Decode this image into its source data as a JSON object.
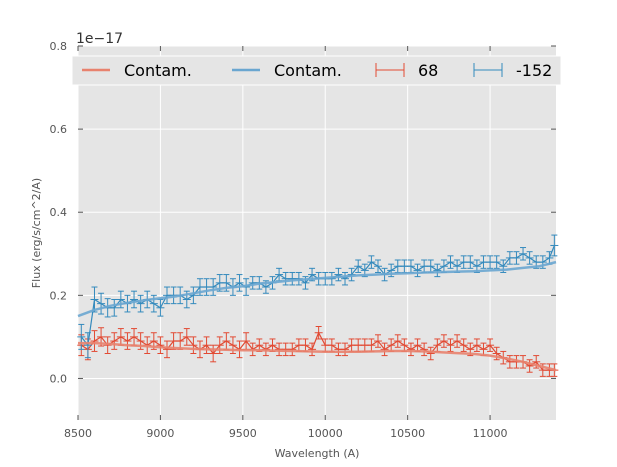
{
  "chart_data": {
    "type": "line",
    "xlabel": "Wavelength (A)",
    "ylabel": "Flux (erg/s/cm^2/A)",
    "y_offset_label": "1e−17",
    "xlim": [
      8500,
      11400
    ],
    "ylim": [
      -0.1,
      0.8
    ],
    "x_ticks": [
      8500,
      9000,
      9500,
      10000,
      10500,
      11000
    ],
    "x_tick_labels": [
      "8500",
      "9000",
      "9500",
      "10000",
      "10500",
      "11000"
    ],
    "y_ticks": [
      0.0,
      0.2,
      0.4,
      0.6,
      0.8
    ],
    "y_tick_labels": [
      "0.0",
      "0.2",
      "0.4",
      "0.6",
      "0.8"
    ],
    "grid": true,
    "legend_position": "top",
    "legend": [
      {
        "label": "Contam.",
        "kind": "line",
        "color": "#e8826e"
      },
      {
        "label": "Contam.",
        "kind": "line",
        "color": "#6aa6d0"
      },
      {
        "label": "68",
        "kind": "errorbar",
        "color": "#e24a33"
      },
      {
        "label": "-152",
        "kind": "errorbar",
        "color": "#348abd"
      }
    ],
    "series": [
      {
        "name": "68",
        "kind": "errorbar",
        "color": "#e24a33",
        "x": [
          8520,
          8560,
          8600,
          8640,
          8680,
          8720,
          8760,
          8800,
          8840,
          8880,
          8920,
          8960,
          9000,
          9040,
          9080,
          9120,
          9160,
          9200,
          9240,
          9280,
          9320,
          9360,
          9400,
          9440,
          9480,
          9520,
          9560,
          9600,
          9640,
          9680,
          9720,
          9760,
          9800,
          9840,
          9880,
          9920,
          9960,
          10000,
          10040,
          10080,
          10120,
          10160,
          10200,
          10240,
          10280,
          10320,
          10360,
          10400,
          10440,
          10480,
          10520,
          10560,
          10600,
          10640,
          10680,
          10720,
          10760,
          10800,
          10840,
          10880,
          10920,
          10960,
          11000,
          11040,
          11080,
          11120,
          11160,
          11200,
          11240,
          11280,
          11320,
          11360,
          11390
        ],
        "y": [
          0.08,
          0.07,
          0.09,
          0.1,
          0.08,
          0.09,
          0.1,
          0.09,
          0.1,
          0.09,
          0.08,
          0.09,
          0.08,
          0.07,
          0.09,
          0.09,
          0.1,
          0.08,
          0.07,
          0.08,
          0.06,
          0.08,
          0.09,
          0.08,
          0.07,
          0.09,
          0.07,
          0.08,
          0.07,
          0.08,
          0.07,
          0.07,
          0.07,
          0.08,
          0.08,
          0.07,
          0.11,
          0.08,
          0.08,
          0.07,
          0.07,
          0.08,
          0.08,
          0.08,
          0.08,
          0.09,
          0.07,
          0.08,
          0.09,
          0.08,
          0.07,
          0.08,
          0.07,
          0.06,
          0.08,
          0.09,
          0.08,
          0.09,
          0.08,
          0.07,
          0.08,
          0.07,
          0.08,
          0.06,
          0.05,
          0.04,
          0.04,
          0.04,
          0.03,
          0.04,
          0.02,
          0.02,
          0.02
        ],
        "err": [
          0.025,
          0.025,
          0.025,
          0.022,
          0.02,
          0.02,
          0.02,
          0.02,
          0.02,
          0.02,
          0.02,
          0.02,
          0.02,
          0.02,
          0.02,
          0.02,
          0.02,
          0.02,
          0.02,
          0.02,
          0.02,
          0.02,
          0.02,
          0.02,
          0.02,
          0.02,
          0.015,
          0.015,
          0.015,
          0.015,
          0.015,
          0.015,
          0.015,
          0.015,
          0.015,
          0.015,
          0.015,
          0.015,
          0.015,
          0.015,
          0.015,
          0.015,
          0.015,
          0.015,
          0.015,
          0.015,
          0.015,
          0.015,
          0.015,
          0.015,
          0.015,
          0.015,
          0.015,
          0.015,
          0.015,
          0.015,
          0.015,
          0.015,
          0.015,
          0.015,
          0.015,
          0.015,
          0.015,
          0.015,
          0.015,
          0.015,
          0.015,
          0.015,
          0.015,
          0.015,
          0.015,
          0.015,
          0.015
        ]
      },
      {
        "name": "-152",
        "kind": "errorbar",
        "color": "#348abd",
        "x": [
          8520,
          8560,
          8600,
          8640,
          8680,
          8720,
          8760,
          8800,
          8840,
          8880,
          8920,
          8960,
          9000,
          9040,
          9080,
          9120,
          9160,
          9200,
          9240,
          9280,
          9320,
          9360,
          9400,
          9440,
          9480,
          9520,
          9560,
          9600,
          9640,
          9680,
          9720,
          9760,
          9800,
          9840,
          9880,
          9920,
          9960,
          10000,
          10040,
          10080,
          10120,
          10160,
          10200,
          10240,
          10280,
          10320,
          10360,
          10400,
          10440,
          10480,
          10520,
          10560,
          10600,
          10640,
          10680,
          10720,
          10760,
          10800,
          10840,
          10880,
          10920,
          10960,
          11000,
          11040,
          11080,
          11120,
          11160,
          11200,
          11240,
          11280,
          11320,
          11360,
          11390
        ],
        "y": [
          0.1,
          0.08,
          0.19,
          0.18,
          0.17,
          0.17,
          0.19,
          0.18,
          0.19,
          0.18,
          0.19,
          0.18,
          0.17,
          0.2,
          0.2,
          0.2,
          0.19,
          0.2,
          0.22,
          0.22,
          0.22,
          0.23,
          0.23,
          0.22,
          0.23,
          0.22,
          0.23,
          0.23,
          0.22,
          0.23,
          0.25,
          0.24,
          0.24,
          0.24,
          0.23,
          0.25,
          0.24,
          0.24,
          0.24,
          0.25,
          0.24,
          0.25,
          0.27,
          0.26,
          0.28,
          0.27,
          0.25,
          0.26,
          0.27,
          0.27,
          0.27,
          0.26,
          0.27,
          0.27,
          0.26,
          0.27,
          0.28,
          0.27,
          0.28,
          0.28,
          0.27,
          0.28,
          0.28,
          0.28,
          0.27,
          0.29,
          0.29,
          0.3,
          0.29,
          0.28,
          0.28,
          0.29,
          0.32
        ],
        "err": [
          0.03,
          0.03,
          0.03,
          0.025,
          0.022,
          0.02,
          0.02,
          0.02,
          0.02,
          0.02,
          0.02,
          0.02,
          0.02,
          0.02,
          0.02,
          0.02,
          0.02,
          0.02,
          0.02,
          0.02,
          0.02,
          0.02,
          0.02,
          0.02,
          0.02,
          0.02,
          0.015,
          0.015,
          0.015,
          0.015,
          0.015,
          0.015,
          0.015,
          0.015,
          0.015,
          0.015,
          0.015,
          0.015,
          0.015,
          0.015,
          0.015,
          0.015,
          0.015,
          0.015,
          0.015,
          0.015,
          0.015,
          0.015,
          0.015,
          0.015,
          0.015,
          0.015,
          0.015,
          0.015,
          0.015,
          0.015,
          0.015,
          0.015,
          0.015,
          0.015,
          0.015,
          0.015,
          0.015,
          0.015,
          0.015,
          0.015,
          0.015,
          0.015,
          0.015,
          0.015,
          0.015,
          0.015,
          0.025
        ]
      },
      {
        "name": "Contam.",
        "kind": "line",
        "color": "#e8826e",
        "x": [
          8500,
          8600,
          8700,
          8800,
          8900,
          9000,
          9100,
          9200,
          9300,
          9400,
          9500,
          9600,
          9700,
          9800,
          9900,
          10000,
          10100,
          10200,
          10300,
          10400,
          10500,
          10600,
          10700,
          10800,
          10900,
          11000,
          11100,
          11200,
          11300,
          11400
        ],
        "y": [
          0.085,
          0.085,
          0.083,
          0.08,
          0.078,
          0.075,
          0.073,
          0.071,
          0.07,
          0.069,
          0.068,
          0.068,
          0.067,
          0.066,
          0.065,
          0.064,
          0.064,
          0.064,
          0.065,
          0.066,
          0.066,
          0.065,
          0.063,
          0.061,
          0.059,
          0.055,
          0.048,
          0.04,
          0.03,
          0.02
        ]
      },
      {
        "name": "Contam.",
        "kind": "line",
        "color": "#6aa6d0",
        "x": [
          8500,
          8600,
          8700,
          8800,
          8900,
          9000,
          9100,
          9200,
          9300,
          9400,
          9500,
          9600,
          9700,
          9800,
          9900,
          10000,
          10100,
          10200,
          10300,
          10400,
          10500,
          10600,
          10700,
          10800,
          10900,
          11000,
          11100,
          11200,
          11300,
          11400
        ],
        "y": [
          0.15,
          0.165,
          0.175,
          0.182,
          0.188,
          0.193,
          0.198,
          0.205,
          0.212,
          0.218,
          0.222,
          0.228,
          0.232,
          0.236,
          0.239,
          0.242,
          0.245,
          0.248,
          0.25,
          0.252,
          0.253,
          0.255,
          0.256,
          0.257,
          0.258,
          0.26,
          0.262,
          0.266,
          0.27,
          0.28
        ]
      }
    ]
  }
}
